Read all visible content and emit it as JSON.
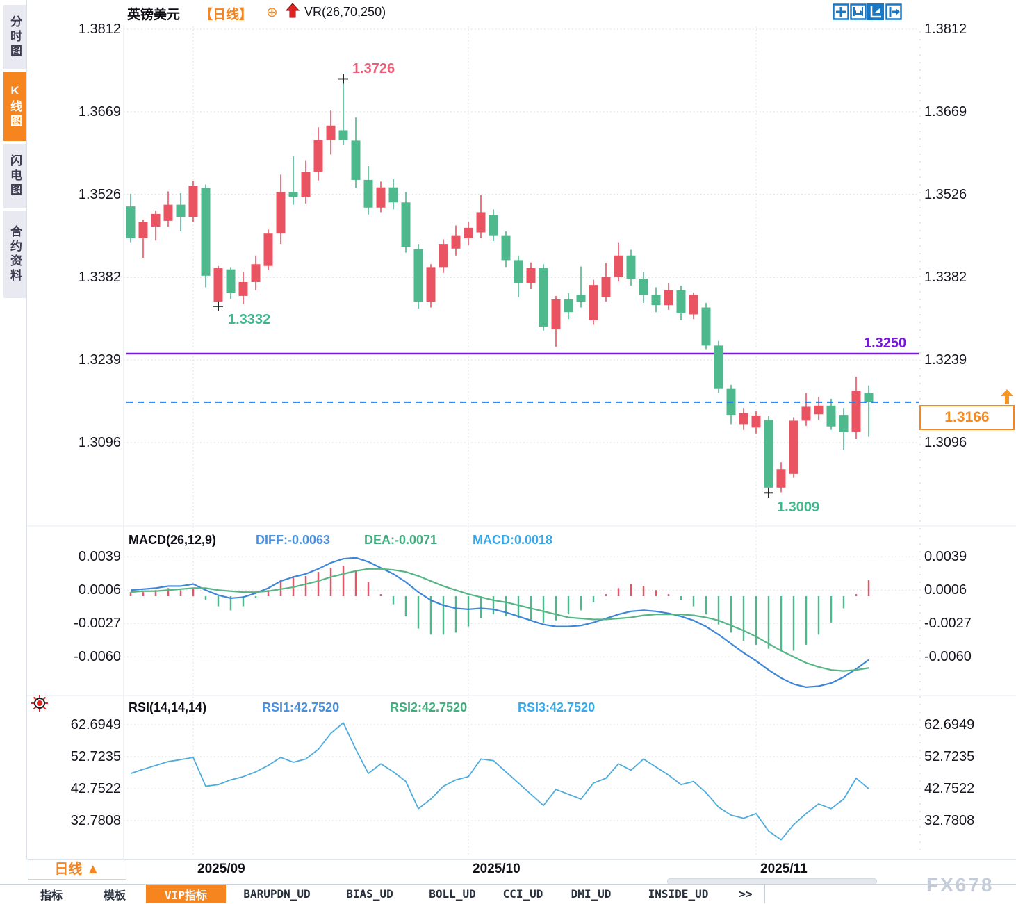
{
  "sidebar": {
    "tabs": [
      {
        "label": "分时图",
        "active": false
      },
      {
        "label": "K线图",
        "active": true
      },
      {
        "label": "闪电图",
        "active": false
      },
      {
        "label": "合约资料",
        "active": false
      }
    ]
  },
  "header": {
    "symbol": "英镑美元",
    "period_tag": "【日线】",
    "plus_glyph": "⊕",
    "indicator": "VR(26,70,250)"
  },
  "toolbar": {
    "icons": [
      "crosshair-icon",
      "zoom-x-icon",
      "auto-fit-icon",
      "pan-right-icon"
    ]
  },
  "price_axis": {
    "labels": [
      "1.3812",
      "1.3669",
      "1.3526",
      "1.3382",
      "1.3239",
      "1.3096"
    ]
  },
  "annotations": {
    "high_label": "1.3726",
    "low1_label": "1.3332",
    "low2_label": "1.3009",
    "support_label": "1.3250",
    "last_price": "1.3166"
  },
  "macd_panel": {
    "title": "MACD(26,12,9)",
    "diff_label": "DIFF:-0.0063",
    "dea_label": "DEA:-0.0071",
    "macd_label": "MACD:0.0018",
    "axis_labels": [
      "0.0039",
      "0.0006",
      "-0.0027",
      "-0.0060"
    ]
  },
  "rsi_panel": {
    "title": "RSI(14,14,14)",
    "rsi1_label": "RSI1:42.7520",
    "rsi2_label": "RSI2:42.7520",
    "rsi3_label": "RSI3:42.7520",
    "axis_labels": [
      "62.6949",
      "52.7235",
      "42.7522",
      "32.7808"
    ]
  },
  "time_axis": {
    "period_button": "日线 ▲",
    "labels": [
      "2025/09",
      "2025/10",
      "2025/11"
    ]
  },
  "bottom_tabs": [
    {
      "label": "指标",
      "active": false
    },
    {
      "label": "模板",
      "active": false
    },
    {
      "label": "VIP指标",
      "active": true
    },
    {
      "label": "BARUPDN_UD",
      "active": false
    },
    {
      "label": "BIAS_UD",
      "active": false
    },
    {
      "label": "BOLL_UD",
      "active": false
    },
    {
      "label": "CCI_UD",
      "active": false
    },
    {
      "label": "DMI_UD",
      "active": false
    },
    {
      "label": "INSIDE_UD",
      "active": false
    },
    {
      "label": ">>",
      "active": false
    }
  ],
  "watermark": "FX678",
  "colors": {
    "up_red": "#ea5462",
    "down_green": "#4db98c",
    "accent_orange": "#f6851f",
    "support_purple": "#7b16dc",
    "price_line_blue": "#1a7fe8",
    "diff_blue": "#4a8fdc",
    "dea_green": "#44ad7f",
    "macd_cyan": "#3aa8e8",
    "rsi_blue": "#4fabdc",
    "grid": "#dadada"
  },
  "chart_data": {
    "type": "candlestick",
    "symbol": "英镑美元",
    "period": "日线",
    "price_axis_range": [
      1.3096,
      1.3812
    ],
    "grid": true,
    "candles": [
      [
        1.3505,
        1.3527,
        1.3443,
        1.345
      ],
      [
        1.345,
        1.3482,
        1.3416,
        1.3478
      ],
      [
        1.347,
        1.3498,
        1.3446,
        1.3492
      ],
      [
        1.348,
        1.3531,
        1.347,
        1.3508
      ],
      [
        1.3508,
        1.3528,
        1.3462,
        1.3487
      ],
      [
        1.3487,
        1.3549,
        1.3478,
        1.3541
      ],
      [
        1.3537,
        1.3543,
        1.3365,
        1.3385
      ],
      [
        1.334,
        1.3402,
        1.3332,
        1.3398
      ],
      [
        1.3396,
        1.34,
        1.3345,
        1.3355
      ],
      [
        1.335,
        1.3392,
        1.3336,
        1.3374
      ],
      [
        1.3374,
        1.342,
        1.336,
        1.3405
      ],
      [
        1.3402,
        1.3465,
        1.3395,
        1.3458
      ],
      [
        1.3458,
        1.356,
        1.344,
        1.353
      ],
      [
        1.353,
        1.3592,
        1.3508,
        1.3522
      ],
      [
        1.3522,
        1.3585,
        1.351,
        1.3565
      ],
      [
        1.3565,
        1.3642,
        1.355,
        1.362
      ],
      [
        1.362,
        1.3671,
        1.3595,
        1.3645
      ],
      [
        1.3637,
        1.3726,
        1.3612,
        1.362
      ],
      [
        1.3619,
        1.3659,
        1.3537,
        1.3551
      ],
      [
        1.3551,
        1.3575,
        1.3491,
        1.3503
      ],
      [
        1.3503,
        1.3548,
        1.3495,
        1.3538
      ],
      [
        1.3538,
        1.3552,
        1.35,
        1.3512
      ],
      [
        1.3512,
        1.353,
        1.3425,
        1.3435
      ],
      [
        1.3431,
        1.344,
        1.3328,
        1.334
      ],
      [
        1.334,
        1.3405,
        1.333,
        1.34
      ],
      [
        1.34,
        1.3448,
        1.339,
        1.344
      ],
      [
        1.3432,
        1.3472,
        1.342,
        1.3455
      ],
      [
        1.345,
        1.3478,
        1.3438,
        1.3468
      ],
      [
        1.346,
        1.3525,
        1.345,
        1.3495
      ],
      [
        1.349,
        1.35,
        1.3445,
        1.3455
      ],
      [
        1.3455,
        1.3462,
        1.34,
        1.3412
      ],
      [
        1.3412,
        1.342,
        1.3348,
        1.3372
      ],
      [
        1.3372,
        1.3408,
        1.3362,
        1.3398
      ],
      [
        1.3398,
        1.3405,
        1.329,
        1.3297
      ],
      [
        1.3292,
        1.335,
        1.3262,
        1.3344
      ],
      [
        1.3344,
        1.3355,
        1.331,
        1.3322
      ],
      [
        1.3352,
        1.3401,
        1.333,
        1.334
      ],
      [
        1.3308,
        1.3378,
        1.33,
        1.3369
      ],
      [
        1.3348,
        1.3407,
        1.334,
        1.3383
      ],
      [
        1.3383,
        1.3443,
        1.3375,
        1.342
      ],
      [
        1.342,
        1.343,
        1.3368,
        1.338
      ],
      [
        1.338,
        1.3392,
        1.3338,
        1.3352
      ],
      [
        1.3352,
        1.3365,
        1.3322,
        1.3334
      ],
      [
        1.3334,
        1.3372,
        1.3326,
        1.336
      ],
      [
        1.336,
        1.3368,
        1.3308,
        1.332
      ],
      [
        1.3318,
        1.3356,
        1.331,
        1.3352
      ],
      [
        1.333,
        1.3338,
        1.3258,
        1.3264
      ],
      [
        1.3264,
        1.3272,
        1.3182,
        1.3189
      ],
      [
        1.3189,
        1.3196,
        1.3128,
        1.3144
      ],
      [
        1.3128,
        1.3156,
        1.3118,
        1.3147
      ],
      [
        1.3122,
        1.315,
        1.3112,
        1.3143
      ],
      [
        1.3135,
        1.3142,
        1.3009,
        1.3018
      ],
      [
        1.3018,
        1.3062,
        1.301,
        1.305
      ],
      [
        1.3042,
        1.314,
        1.3035,
        1.3134
      ],
      [
        1.3134,
        1.3182,
        1.3125,
        1.3158
      ],
      [
        1.3145,
        1.3175,
        1.3135,
        1.316
      ],
      [
        1.316,
        1.3172,
        1.3118,
        1.3124
      ],
      [
        1.3144,
        1.3156,
        1.3084,
        1.3114
      ],
      [
        1.3114,
        1.321,
        1.3102,
        1.3186
      ],
      [
        1.3182,
        1.3195,
        1.3106,
        1.3166
      ]
    ],
    "support_line": 1.325,
    "last_price": 1.3166,
    "high_marker": {
      "index": 17,
      "price": 1.3726
    },
    "low_markers": [
      {
        "index": 7,
        "price": 1.3332
      },
      {
        "index": 51,
        "price": 1.3009
      }
    ],
    "month_ticks": [
      {
        "index": 5,
        "label": "2025/09"
      },
      {
        "index": 27,
        "label": "2025/10"
      },
      {
        "index": 50,
        "label": "2025/11"
      }
    ],
    "macd": {
      "params": "26,12,9",
      "axis": [
        0.0039,
        0.0006,
        -0.0027,
        -0.006
      ],
      "current": {
        "diff": -0.0063,
        "dea": -0.0071,
        "macd": 0.0018
      },
      "diff": [
        0.0006,
        0.0007,
        0.0008,
        0.001,
        0.001,
        0.0012,
        0.0006,
        0.0001,
        -0.0002,
        -0.0001,
        0.0003,
        0.0008,
        0.0015,
        0.0019,
        0.0022,
        0.0027,
        0.0033,
        0.0037,
        0.0038,
        0.0034,
        0.0028,
        0.0022,
        0.0014,
        0.0004,
        -0.0004,
        -0.0009,
        -0.0012,
        -0.0013,
        -0.0012,
        -0.0013,
        -0.0016,
        -0.002,
        -0.0024,
        -0.0028,
        -0.003,
        -0.003,
        -0.0029,
        -0.0026,
        -0.0022,
        -0.0018,
        -0.0015,
        -0.0014,
        -0.0015,
        -0.0017,
        -0.002,
        -0.0024,
        -0.003,
        -0.0038,
        -0.0047,
        -0.0056,
        -0.0064,
        -0.0073,
        -0.0081,
        -0.0087,
        -0.009,
        -0.0089,
        -0.0086,
        -0.008,
        -0.0072,
        -0.0063
      ],
      "dea": [
        0.0004,
        0.0005,
        0.0005,
        0.0006,
        0.0007,
        0.0008,
        0.0008,
        0.0006,
        0.0005,
        0.0004,
        0.0004,
        0.0005,
        0.0007,
        0.0009,
        0.0012,
        0.0015,
        0.0019,
        0.0022,
        0.0025,
        0.0027,
        0.0027,
        0.0026,
        0.0024,
        0.002,
        0.0015,
        0.001,
        0.0006,
        0.0002,
        -0.0001,
        -0.0004,
        -0.0006,
        -0.0009,
        -0.0012,
        -0.0015,
        -0.0018,
        -0.0021,
        -0.0022,
        -0.0023,
        -0.0023,
        -0.0022,
        -0.0021,
        -0.0019,
        -0.0018,
        -0.0018,
        -0.0018,
        -0.0019,
        -0.0021,
        -0.0024,
        -0.0029,
        -0.0034,
        -0.004,
        -0.0047,
        -0.0054,
        -0.006,
        -0.0066,
        -0.007,
        -0.0073,
        -0.0074,
        -0.0073,
        -0.0071
      ]
    },
    "rsi": {
      "params": "14,14,14",
      "axis": [
        62.6949,
        52.7235,
        42.7522,
        32.7808
      ],
      "current": {
        "rsi1": 42.752,
        "rsi2": 42.752,
        "rsi3": 42.752
      },
      "values": [
        47.5,
        48.8,
        50.0,
        51.2,
        51.8,
        52.5,
        43.5,
        44.0,
        45.5,
        46.5,
        48.0,
        50.0,
        52.5,
        51.0,
        52.0,
        55.0,
        60.0,
        63.3,
        55.0,
        47.5,
        50.5,
        48.0,
        45.0,
        36.5,
        39.5,
        43.5,
        45.5,
        46.5,
        52.0,
        51.5,
        48.0,
        44.5,
        41.0,
        37.5,
        42.5,
        41.0,
        39.5,
        44.5,
        46.0,
        50.5,
        48.5,
        52.0,
        49.5,
        47.0,
        44.0,
        45.0,
        41.5,
        37.0,
        34.5,
        33.5,
        35.0,
        29.5,
        26.8,
        31.5,
        35.0,
        38.0,
        36.5,
        39.5,
        46.0,
        42.75
      ]
    }
  }
}
